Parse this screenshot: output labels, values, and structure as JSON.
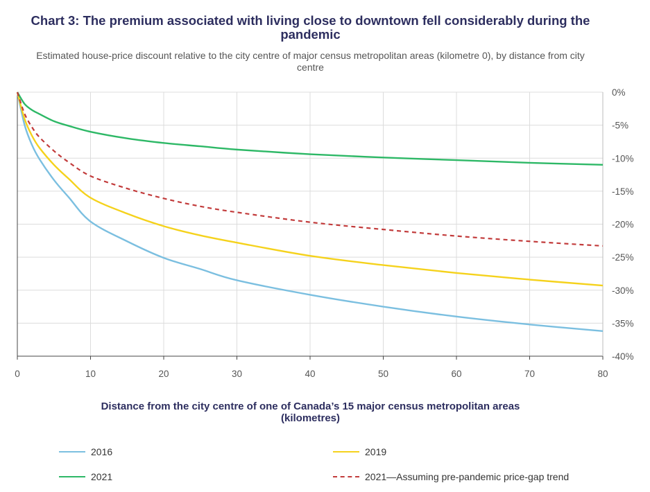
{
  "chart_data": {
    "type": "line",
    "title": "Chart 3: The premium associated with living close to downtown fell considerably during the pandemic",
    "subtitle": "Estimated house-price discount relative to the city centre of major census metropolitan areas (kilometre 0), by distance from city centre",
    "xlabel": "Distance from the city centre of one of Canada’s 15 major census metropolitan areas (kilometres)",
    "ylabel": "",
    "xlim": [
      0,
      80
    ],
    "ylim": [
      -40,
      0
    ],
    "x_ticks": [
      0,
      10,
      20,
      30,
      40,
      50,
      60,
      70,
      80
    ],
    "y_ticks": [
      0,
      -5,
      -10,
      -15,
      -20,
      -25,
      -30,
      -35,
      -40
    ],
    "y_tick_labels": [
      "0%",
      "-5%",
      "-10%",
      "-15%",
      "-20%",
      "-25%",
      "-30%",
      "-35%",
      "-40%"
    ],
    "grid": true,
    "legend_position": "bottom",
    "x": [
      0,
      1,
      2,
      3,
      5,
      7,
      10,
      15,
      20,
      25,
      30,
      40,
      50,
      60,
      70,
      80
    ],
    "series": [
      {
        "name": "2016",
        "color": "#7bbfe0",
        "style": "solid",
        "values": [
          0,
          -5.0,
          -8.0,
          -10.1,
          -13.3,
          -15.9,
          -19.6,
          -22.6,
          -25.1,
          -26.8,
          -28.5,
          -30.7,
          -32.5,
          -34.0,
          -35.2,
          -36.2
        ]
      },
      {
        "name": "2019",
        "color": "#f5d21c",
        "style": "solid",
        "values": [
          0,
          -4.1,
          -6.6,
          -8.4,
          -11.0,
          -13.1,
          -16.0,
          -18.4,
          -20.3,
          -21.7,
          -22.8,
          -24.8,
          -26.2,
          -27.4,
          -28.4,
          -29.3
        ]
      },
      {
        "name": "2021",
        "color": "#2db866",
        "style": "solid",
        "values": [
          0,
          -1.8,
          -2.7,
          -3.3,
          -4.4,
          -5.1,
          -6.0,
          -7.0,
          -7.7,
          -8.2,
          -8.7,
          -9.4,
          -9.9,
          -10.3,
          -10.7,
          -11.0
        ]
      },
      {
        "name": "2021—Assuming pre-pandemic price-gap trend",
        "color": "#c23b3b",
        "style": "dashed",
        "values": [
          0,
          -3.3,
          -5.3,
          -6.8,
          -8.9,
          -10.6,
          -12.7,
          -14.6,
          -16.1,
          -17.3,
          -18.2,
          -19.7,
          -20.8,
          -21.8,
          -22.6,
          -23.3
        ]
      }
    ]
  }
}
